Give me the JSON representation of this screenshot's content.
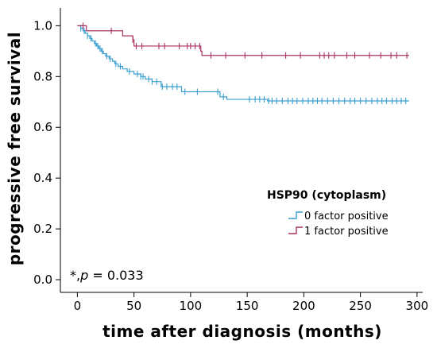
{
  "chart_data": {
    "type": "line",
    "step": true,
    "xlabel": "time after diagnosis (months)",
    "ylabel": "progressive free survival",
    "xlim": [
      -15,
      305
    ],
    "ylim": [
      -0.05,
      1.07
    ],
    "xticks": [
      0,
      50,
      100,
      150,
      200,
      250,
      300
    ],
    "yticks": [
      0.0,
      0.2,
      0.4,
      0.6,
      0.8,
      1.0
    ],
    "grid": false,
    "legend": {
      "title": "HSP90 (cytoplasm)",
      "placement": "bottom-right"
    },
    "annotation": {
      "prefix": "*,",
      "pvar": "p",
      "rest": " = 0.033"
    },
    "series": [
      {
        "name": "0 factor positive",
        "color": "#3a9fd0",
        "steps": [
          [
            0,
            1.0
          ],
          [
            3,
            0.99
          ],
          [
            5,
            0.98
          ],
          [
            7,
            0.97
          ],
          [
            9,
            0.96
          ],
          [
            11,
            0.95
          ],
          [
            13,
            0.94
          ],
          [
            15,
            0.93
          ],
          [
            17,
            0.92
          ],
          [
            19,
            0.91
          ],
          [
            21,
            0.9
          ],
          [
            23,
            0.89
          ],
          [
            25,
            0.88
          ],
          [
            28,
            0.87
          ],
          [
            31,
            0.86
          ],
          [
            33,
            0.85
          ],
          [
            36,
            0.84
          ],
          [
            40,
            0.83
          ],
          [
            44,
            0.82
          ],
          [
            50,
            0.81
          ],
          [
            56,
            0.8
          ],
          [
            60,
            0.79
          ],
          [
            66,
            0.78
          ],
          [
            74,
            0.76
          ],
          [
            92,
            0.74
          ],
          [
            126,
            0.72
          ],
          [
            132,
            0.71
          ],
          [
            168,
            0.704
          ],
          [
            293,
            0.704
          ]
        ],
        "censor_x": [
          3,
          6,
          9,
          12,
          16,
          18,
          20,
          22,
          26,
          29,
          34,
          38,
          46,
          53,
          56,
          58,
          63,
          66,
          70,
          75,
          79,
          84,
          88,
          95,
          106,
          124,
          129,
          152,
          157,
          161,
          165,
          169,
          172,
          176,
          181,
          186,
          190,
          194,
          199,
          204,
          208,
          212,
          216,
          221,
          226,
          231,
          236,
          241,
          245,
          250,
          255,
          260,
          265,
          269,
          273,
          278,
          282,
          286,
          290
        ]
      },
      {
        "name": "1 factor positive",
        "color": "#a83262",
        "steps": [
          [
            0,
            1.0
          ],
          [
            8,
            0.98
          ],
          [
            40,
            0.96
          ],
          [
            49,
            0.945
          ],
          [
            50,
            0.92
          ],
          [
            109,
            0.9
          ],
          [
            110,
            0.883
          ],
          [
            293,
            0.883
          ]
        ],
        "censor_x": [
          5,
          30,
          49,
          52,
          57,
          72,
          77,
          90,
          97,
          100,
          104,
          108,
          118,
          131,
          148,
          163,
          184,
          197,
          214,
          218,
          222,
          227,
          238,
          245,
          258,
          268,
          277,
          282,
          291
        ]
      }
    ]
  }
}
